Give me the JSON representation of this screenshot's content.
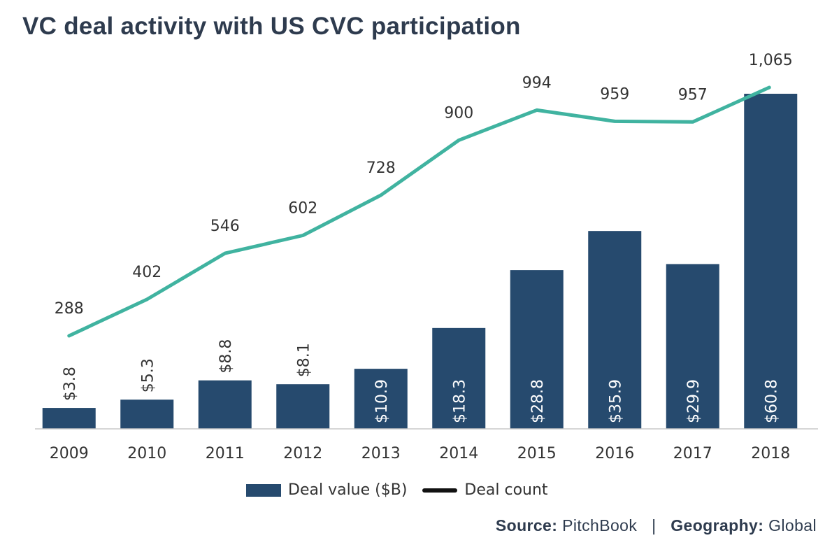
{
  "title": "VC deal activity with US CVC participation",
  "chart_data": {
    "type": "bar",
    "categories": [
      "2009",
      "2010",
      "2011",
      "2012",
      "2013",
      "2014",
      "2015",
      "2016",
      "2017",
      "2018"
    ],
    "series": [
      {
        "name": "Deal value ($B)",
        "kind": "bar",
        "axis": "left",
        "values": [
          3.8,
          5.3,
          8.8,
          8.1,
          10.9,
          18.3,
          28.8,
          35.9,
          29.9,
          60.8
        ],
        "labels": [
          "$3.8",
          "$5.3",
          "$8.8",
          "$8.1",
          "$10.9",
          "$18.3",
          "$28.8",
          "$35.9",
          "$29.9",
          "$60.8"
        ],
        "color": "#264a6e"
      },
      {
        "name": "Deal count",
        "kind": "line",
        "axis": "right",
        "values": [
          288,
          402,
          546,
          602,
          728,
          900,
          994,
          959,
          957,
          1065
        ],
        "labels": [
          "288",
          "402",
          "546",
          "602",
          "728",
          "900",
          "994",
          "959",
          "957",
          "1,065"
        ],
        "color": "#40b3a0"
      }
    ],
    "left_axis_range": [
      0,
      70
    ],
    "right_axis_range": [
      0,
      1100
    ],
    "grid": false,
    "legend_position": "bottom-center"
  },
  "legend": {
    "bar_label": "Deal value ($B)",
    "line_label": "Deal count",
    "line_swatch_color": "#111111"
  },
  "source": {
    "source_key": "Source:",
    "source_value": "PitchBook",
    "separator": "|",
    "geo_key": "Geography:",
    "geo_value": "Global"
  }
}
